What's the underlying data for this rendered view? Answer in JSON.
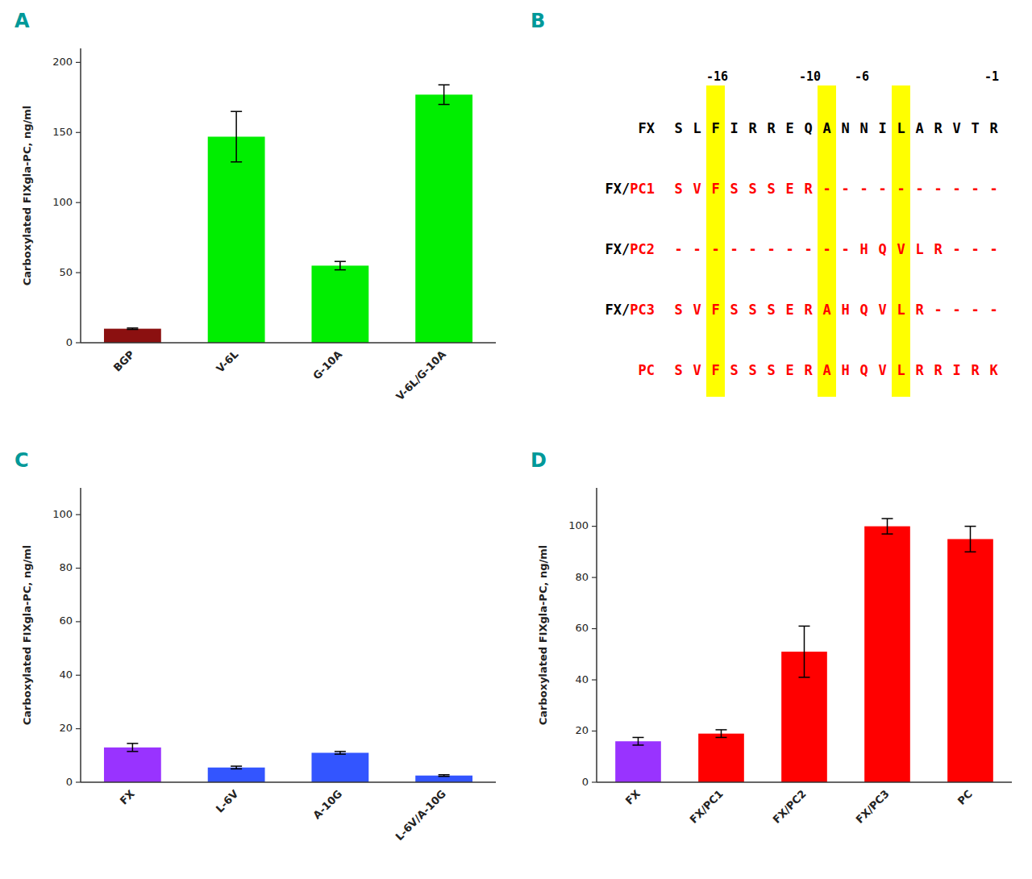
{
  "chart_data": [
    {
      "type": "bar",
      "title": "A",
      "categories": [
        "BGP",
        "V-6L",
        "G-10A",
        "V-6L/G-10A"
      ],
      "values": [
        10,
        147,
        55,
        177
      ],
      "errors": [
        0.5,
        18,
        3,
        7
      ],
      "colors": [
        "#8B1010",
        "#00EE00",
        "#00EE00",
        "#00EE00"
      ],
      "ylabel": "Carboxylated FIXgla-PC, ng/ml",
      "ylim": [
        0,
        210
      ],
      "yticks": [
        0,
        50,
        100,
        150,
        200
      ],
      "grid": false
    },
    {
      "type": "alignment",
      "title": "B",
      "color": "yellow",
      "header": [
        {
          "text": "-16",
          "col": 2
        },
        {
          "text": "-10",
          "col": 7
        },
        {
          "text": "-6",
          "col": 10
        },
        {
          "text": "-1",
          "col": 17
        }
      ],
      "highlight_cols": [
        2,
        8,
        12
      ],
      "rows": [
        {
          "label": [
            "FX"
          ],
          "label_colors": [
            "black"
          ],
          "chars": [
            "S",
            "L",
            "F",
            "I",
            "R",
            "R",
            "E",
            "Q",
            "A",
            "N",
            "N",
            "I",
            "L",
            "A",
            "R",
            "V",
            "T",
            "R"
          ],
          "colors": [
            "black",
            "black",
            "black",
            "black",
            "black",
            "black",
            "black",
            "black",
            "black",
            "black",
            "black",
            "black",
            "black",
            "black",
            "black",
            "black",
            "black",
            "black"
          ]
        },
        {
          "label": [
            "FX/",
            "PC1"
          ],
          "label_colors": [
            "black",
            "red"
          ],
          "chars": [
            "S",
            "V",
            "F",
            "S",
            "S",
            "S",
            "E",
            "R",
            "-",
            "-",
            "-",
            "-",
            "-",
            "-",
            "-",
            "-",
            "-",
            "-"
          ],
          "colors": [
            "red",
            "red",
            "red",
            "red",
            "red",
            "red",
            "red",
            "red",
            "red",
            "red",
            "red",
            "red",
            "red",
            "red",
            "red",
            "red",
            "red",
            "red"
          ]
        },
        {
          "label": [
            "FX/",
            "PC2"
          ],
          "label_colors": [
            "black",
            "red"
          ],
          "chars": [
            "-",
            "-",
            "-",
            "-",
            "-",
            "-",
            "-",
            "-",
            "-",
            "-",
            "H",
            "Q",
            "V",
            "L",
            "R",
            "-",
            "-",
            "-"
          ],
          "colors": [
            "red",
            "red",
            "red",
            "red",
            "red",
            "red",
            "red",
            "red",
            "red",
            "red",
            "red",
            "red",
            "red",
            "red",
            "red",
            "red",
            "red",
            "red"
          ]
        },
        {
          "label": [
            "FX/",
            "PC3"
          ],
          "label_colors": [
            "black",
            "red"
          ],
          "chars": [
            "S",
            "V",
            "F",
            "S",
            "S",
            "S",
            "E",
            "R",
            "A",
            "H",
            "Q",
            "V",
            "L",
            "R",
            "-",
            "-",
            "-",
            "-"
          ],
          "colors": [
            "red",
            "red",
            "red",
            "red",
            "red",
            "red",
            "red",
            "red",
            "red",
            "red",
            "red",
            "red",
            "red",
            "red",
            "red",
            "red",
            "red",
            "red"
          ]
        },
        {
          "label": [
            "PC"
          ],
          "label_colors": [
            "red"
          ],
          "chars": [
            "S",
            "V",
            "F",
            "S",
            "S",
            "S",
            "E",
            "R",
            "A",
            "H",
            "Q",
            "V",
            "L",
            "R",
            "R",
            "I",
            "R",
            "K"
          ],
          "colors": [
            "red",
            "red",
            "red",
            "red",
            "red",
            "red",
            "red",
            "red",
            "red",
            "red",
            "red",
            "red",
            "red",
            "red",
            "red",
            "red",
            "red",
            "red"
          ]
        }
      ]
    },
    {
      "type": "bar",
      "title": "C",
      "categories": [
        "FX",
        "L-6V",
        "A-10G",
        "L-6V/A-10G"
      ],
      "values": [
        13,
        5.5,
        11,
        2.5
      ],
      "errors": [
        1.5,
        0.5,
        0.5,
        0.3
      ],
      "colors": [
        "#9933FF",
        "#3355FF",
        "#3355FF",
        "#3355FF"
      ],
      "ylabel": "Carboxylated FIXgla-PC, ng/ml",
      "ylim": [
        0,
        110
      ],
      "yticks": [
        0,
        20,
        40,
        60,
        80,
        100
      ],
      "grid": false
    },
    {
      "type": "bar",
      "title": "D",
      "categories": [
        "FX",
        "FX/PC1",
        "FX/PC2",
        "FX/PC3",
        "PC"
      ],
      "values": [
        16,
        19,
        51,
        100,
        95
      ],
      "errors": [
        1.5,
        1.5,
        10,
        3,
        5
      ],
      "colors": [
        "#9933FF",
        "#FF0000",
        "#FF0000",
        "#FF0000",
        "#FF0000"
      ],
      "ylabel": "Carboxylated FIXgla-PC, ng/ml",
      "ylim": [
        0,
        115
      ],
      "yticks": [
        0,
        20,
        40,
        60,
        80,
        100
      ],
      "grid": false
    }
  ]
}
